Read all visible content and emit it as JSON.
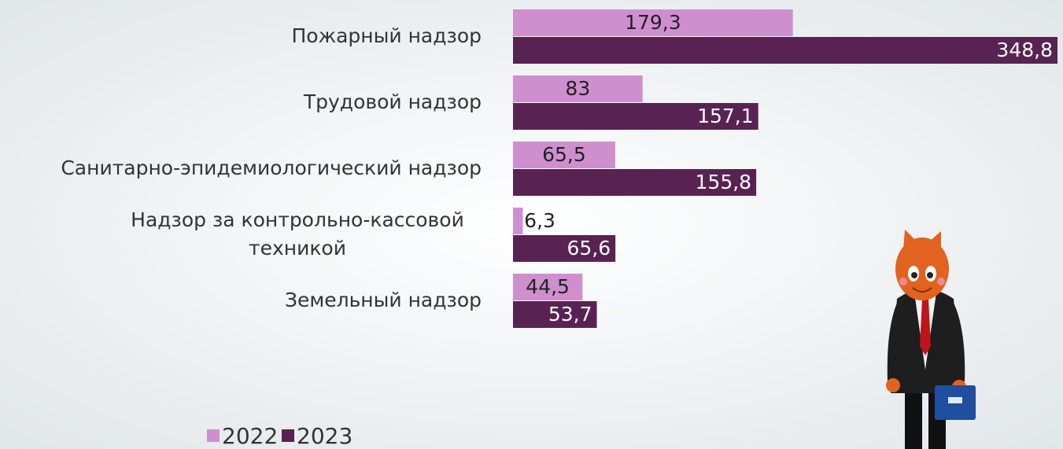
{
  "chart_data": {
    "type": "hbar",
    "categories": [
      "Пожарный надзор",
      "Трудовой надзор",
      "Санитарно-эпидемиологический надзор",
      "Надзор за контрольно-кассовой\nтехникой",
      "Земельный надзор"
    ],
    "series": [
      {
        "name": "2022",
        "color": "#cf8fcf",
        "values": [
          179.3,
          83,
          65.5,
          6.3,
          44.5
        ],
        "value_labels": [
          "179,3",
          "83",
          "65,5",
          "6,3",
          "44,5"
        ]
      },
      {
        "name": "2023",
        "color": "#582353",
        "values": [
          348.8,
          157.1,
          155.8,
          65.6,
          53.7
        ],
        "value_labels": [
          "348,8",
          "157,1",
          "155,8",
          "65,6",
          "53,7"
        ]
      }
    ]
  }
}
